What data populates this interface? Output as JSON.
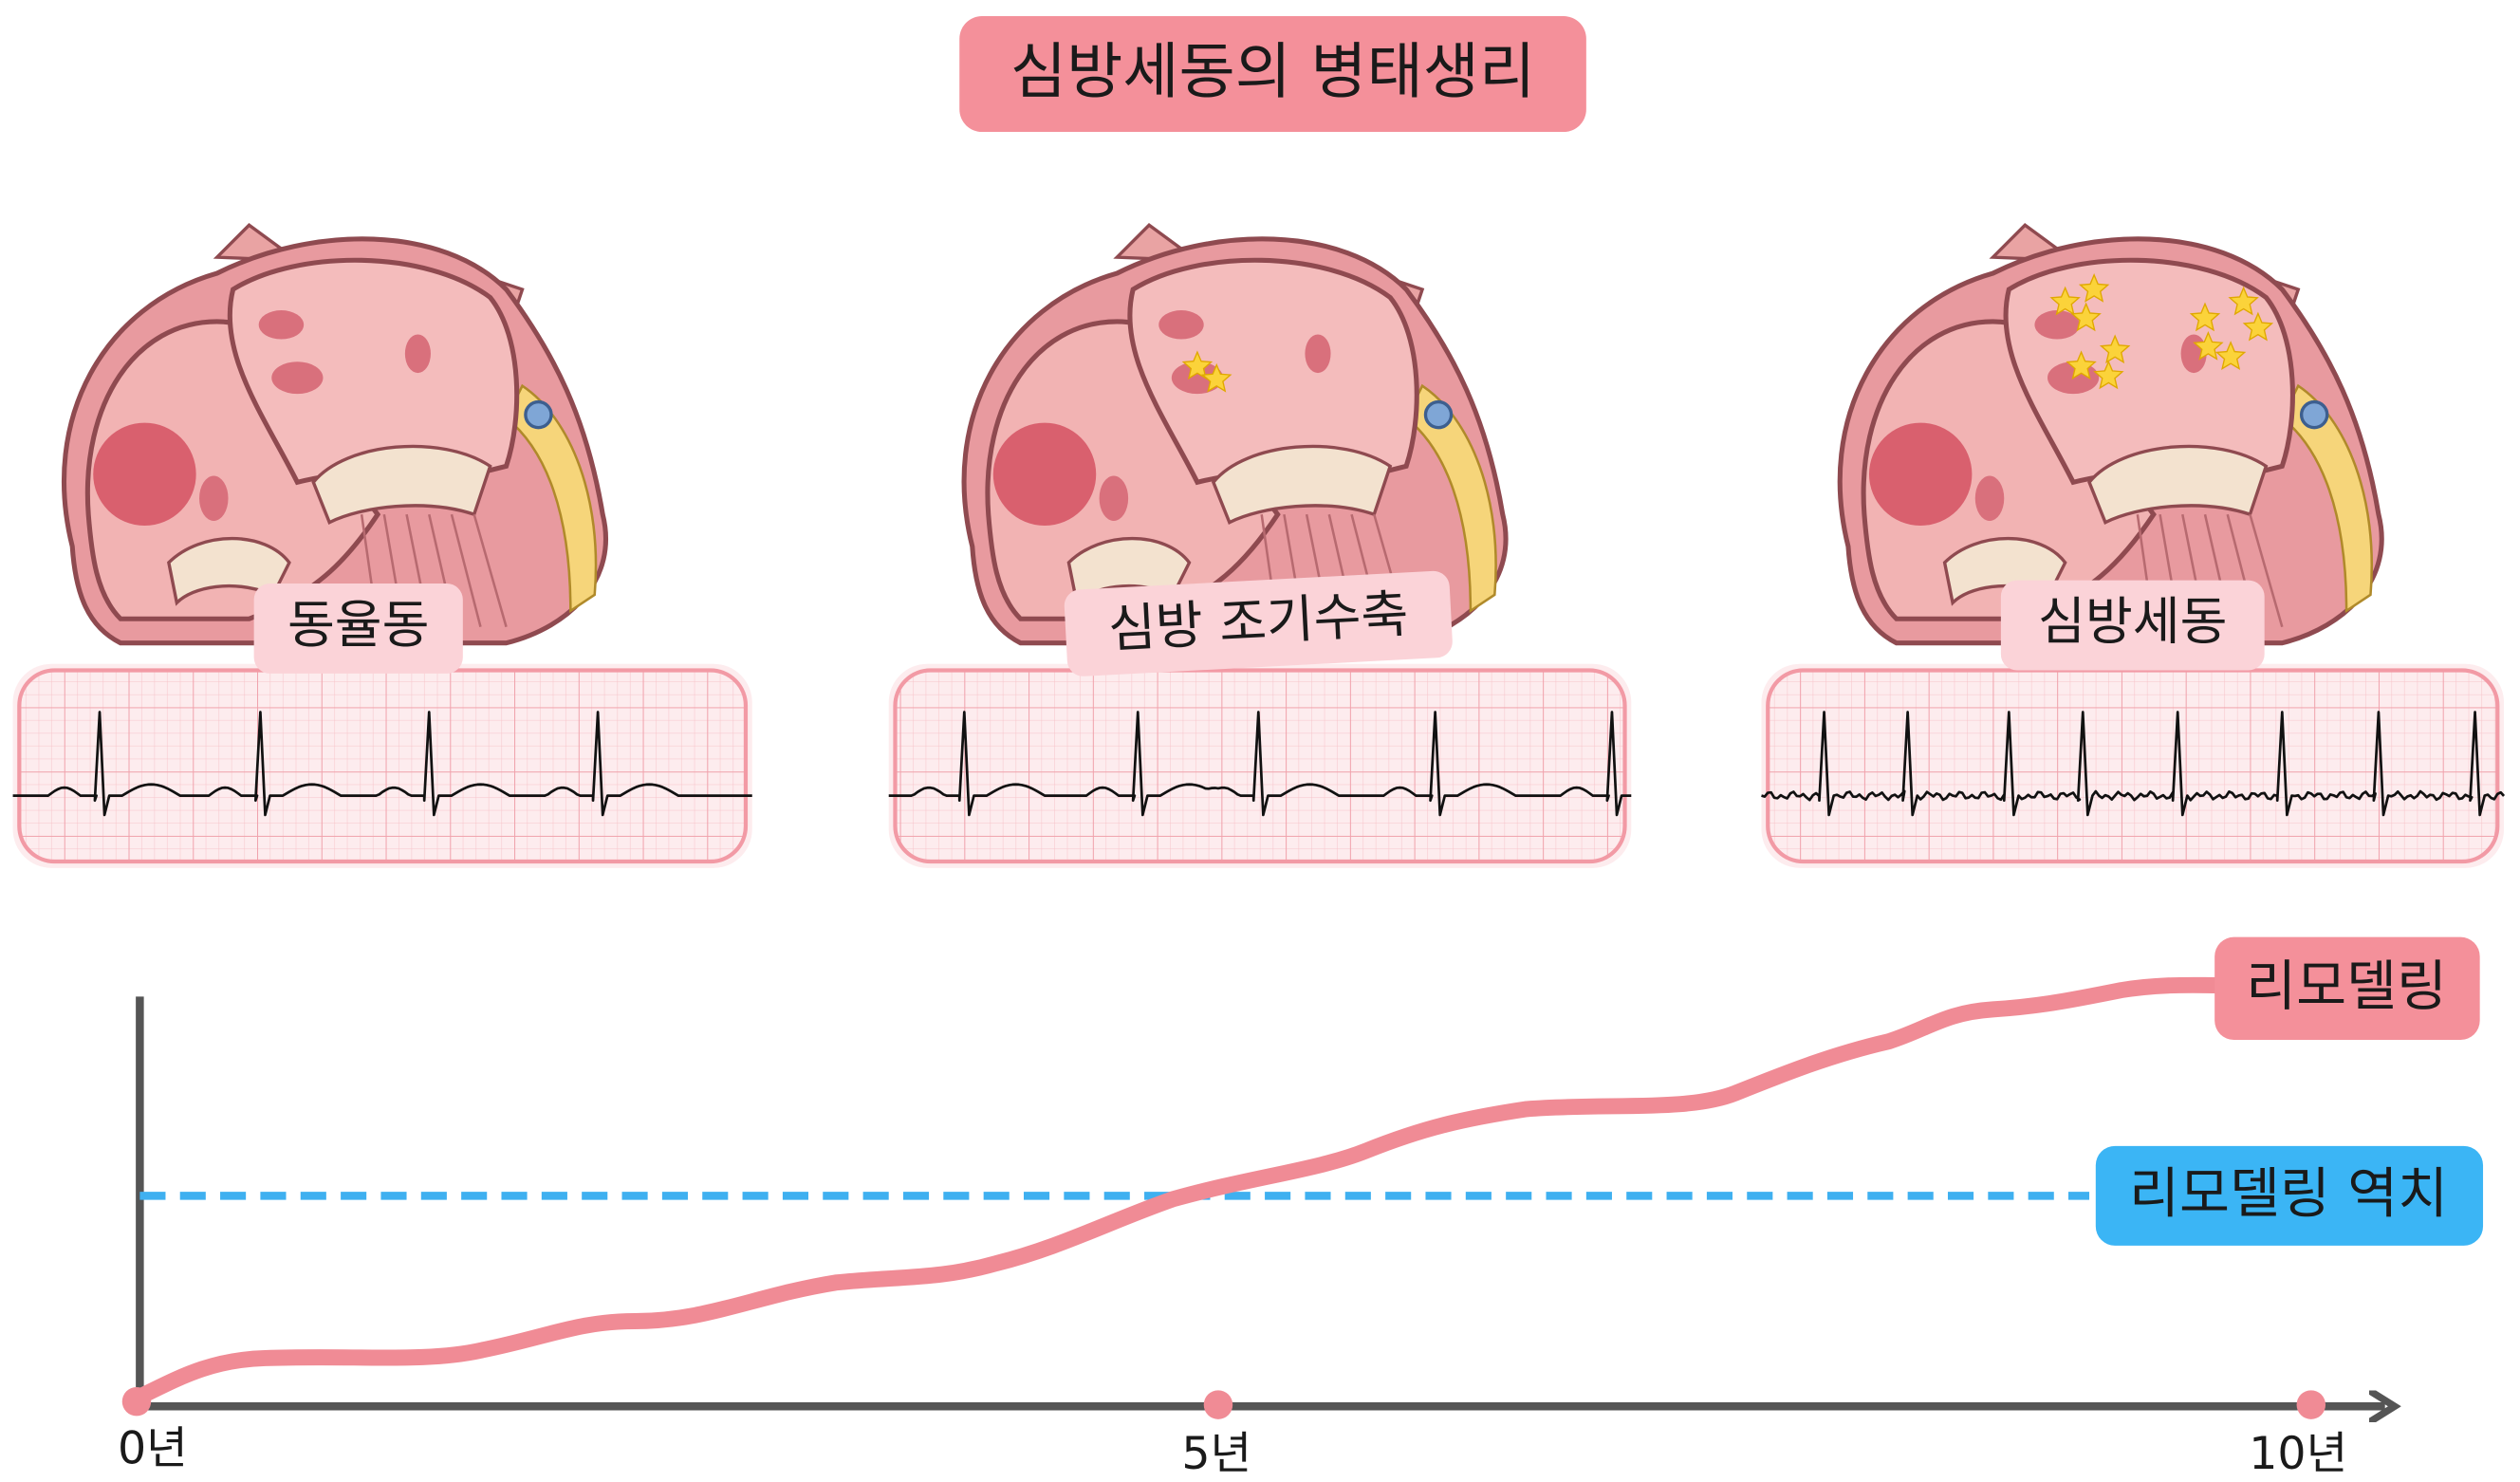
{
  "title": "심방세동의 병태생리",
  "panels": [
    {
      "label": "동율동"
    },
    {
      "label": "심방 조기수축"
    },
    {
      "label": "심방세동"
    }
  ],
  "graph": {
    "curve_label": "리모델링",
    "threshold_label": "리모델링 역치",
    "x_labels": [
      "0년",
      "5년",
      "10년"
    ]
  }
}
